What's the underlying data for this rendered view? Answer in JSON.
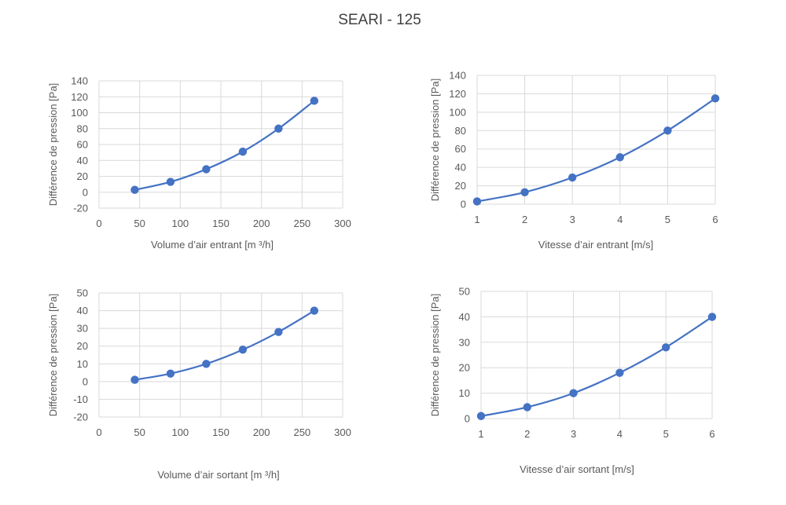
{
  "title": "SEARI - 125",
  "colors": {
    "series": "#4472c4",
    "grid": "#d9d9d9",
    "text": "#595959"
  },
  "chart_data": [
    {
      "type": "line",
      "title": "",
      "xlabel": "Volume d’air entrant [m ³/h]",
      "ylabel": "Différence de pression [Pa]",
      "xlim": [
        0,
        300
      ],
      "xticks": [
        0,
        50,
        100,
        150,
        200,
        250,
        300
      ],
      "ylim": [
        -20,
        140
      ],
      "yticks": [
        -20,
        0,
        20,
        40,
        60,
        80,
        100,
        120,
        140
      ],
      "grid": true,
      "series": [
        {
          "x": [
            44,
            88,
            132,
            177,
            221,
            265
          ],
          "y": [
            3,
            13,
            29,
            51,
            80,
            115
          ]
        }
      ]
    },
    {
      "type": "line",
      "title": "",
      "xlabel": "Vitesse d’air entrant [m/s]",
      "ylabel": "Différence de pression [Pa]",
      "xlim": [
        1,
        6
      ],
      "xticks": [
        1,
        2,
        3,
        4,
        5,
        6
      ],
      "ylim": [
        0,
        140
      ],
      "yticks": [
        0,
        20,
        40,
        60,
        80,
        100,
        120,
        140
      ],
      "grid": true,
      "series": [
        {
          "x": [
            1,
            2,
            3,
            4,
            5,
            6
          ],
          "y": [
            3,
            13,
            29,
            51,
            80,
            115
          ]
        }
      ]
    },
    {
      "type": "line",
      "title": "",
      "xlabel": "Volume d’air sortant [m ³/h]",
      "ylabel": "Différence de pression [Pa]",
      "xlim": [
        0,
        300
      ],
      "xticks": [
        0,
        50,
        100,
        150,
        200,
        250,
        300
      ],
      "ylim": [
        -20,
        50
      ],
      "yticks": [
        -20,
        -10,
        0,
        10,
        20,
        30,
        40,
        50
      ],
      "grid": true,
      "series": [
        {
          "x": [
            44,
            88,
            132,
            177,
            221,
            265
          ],
          "y": [
            1,
            4.5,
            10,
            18,
            28,
            40
          ]
        }
      ]
    },
    {
      "type": "line",
      "title": "",
      "xlabel": "Vitesse d’air sortant [m/s]",
      "ylabel": "Différence de pression [Pa]",
      "xlim": [
        1,
        6
      ],
      "xticks": [
        1,
        2,
        3,
        4,
        5,
        6
      ],
      "ylim": [
        0,
        50
      ],
      "yticks": [
        0,
        10,
        20,
        30,
        40,
        50
      ],
      "grid": true,
      "series": [
        {
          "x": [
            1,
            2,
            3,
            4,
            5,
            6
          ],
          "y": [
            1,
            4.5,
            10,
            18,
            28,
            40
          ]
        }
      ]
    }
  ]
}
